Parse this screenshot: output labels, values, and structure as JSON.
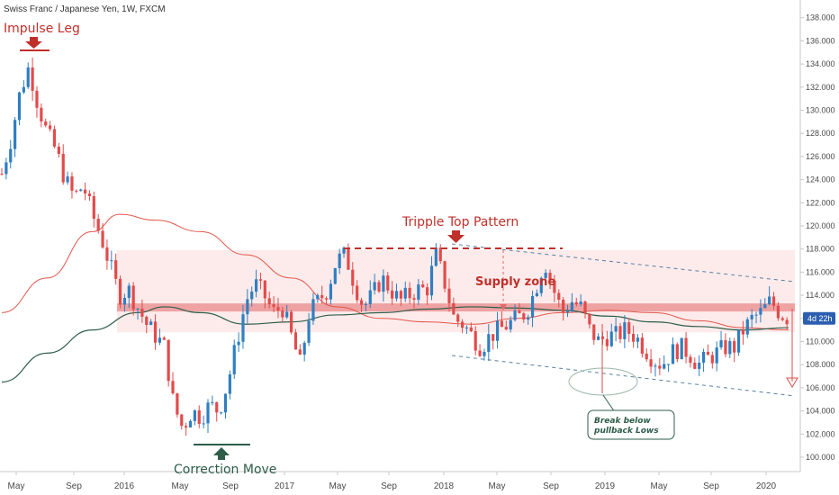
{
  "title": "Swiss Franc / Japanese Yen, 1W, FXCM",
  "price_badge": "4d 22h",
  "colors": {
    "up": "#2f7fc1",
    "down": "#e24b4b",
    "ma_red": "#e2574c",
    "ma_green": "#2e5d4a",
    "zone_fill": "#fde6e6",
    "zone_band": "#e88a8a",
    "badge_bg": "#2b5eb0"
  },
  "annotations": {
    "impulse": "Impulse Leg",
    "triple_top": "Tripple Top Pattern",
    "supply": "Supply zone",
    "correction": "Correction Move",
    "break_line1": "Break below",
    "break_line2": "pullback Lows"
  },
  "chart_data": {
    "type": "candlestick",
    "title": "Swiss Franc / Japanese Yen, 1W, FXCM",
    "ylim": [
      99.3,
      138.6
    ],
    "y_ticks": [
      "138.000",
      "136.000",
      "134.000",
      "132.000",
      "130.000",
      "128.000",
      "126.000",
      "124.000",
      "122.000",
      "120.000",
      "118.000",
      "116.000",
      "114.000",
      "112.000",
      "110.000",
      "108.000",
      "106.000",
      "104.000",
      "102.000",
      "100.000"
    ],
    "x_ticks": [
      "May",
      "Sep",
      "2016",
      "May",
      "Sep",
      "2017",
      "May",
      "Sep",
      "2018",
      "May",
      "Sep",
      "2019",
      "May",
      "Sep",
      "2020"
    ],
    "supply_zone": [
      110.8,
      117.9
    ],
    "support_band": [
      112.6,
      113.3
    ],
    "price_path": [
      {
        "t": 0,
        "p": 124.5
      },
      {
        "t": 2,
        "p": 127.5
      },
      {
        "t": 4,
        "p": 131.5
      },
      {
        "t": 6,
        "p": 133.8
      },
      {
        "t": 8,
        "p": 130.5
      },
      {
        "t": 10,
        "p": 128.0
      },
      {
        "t": 12,
        "p": 126.5
      },
      {
        "t": 14,
        "p": 124.0
      },
      {
        "t": 16,
        "p": 122.5
      },
      {
        "t": 18,
        "p": 123.5
      },
      {
        "t": 20,
        "p": 121.0
      },
      {
        "t": 22,
        "p": 119.0
      },
      {
        "t": 24,
        "p": 116.5
      },
      {
        "t": 26,
        "p": 114.0
      },
      {
        "t": 28,
        "p": 114.5
      },
      {
        "t": 30,
        "p": 113.0
      },
      {
        "t": 32,
        "p": 111.5
      },
      {
        "t": 34,
        "p": 110.5
      },
      {
        "t": 36,
        "p": 109.5
      },
      {
        "t": 38,
        "p": 104.5
      },
      {
        "t": 40,
        "p": 102.5
      },
      {
        "t": 42,
        "p": 104.0
      },
      {
        "t": 44,
        "p": 103.5
      },
      {
        "t": 46,
        "p": 104.5
      },
      {
        "t": 48,
        "p": 104.0
      },
      {
        "t": 50,
        "p": 106.5
      },
      {
        "t": 52,
        "p": 110.0
      },
      {
        "t": 54,
        "p": 113.5
      },
      {
        "t": 56,
        "p": 115.0
      },
      {
        "t": 58,
        "p": 114.0
      },
      {
        "t": 60,
        "p": 112.5
      },
      {
        "t": 62,
        "p": 113.0
      },
      {
        "t": 64,
        "p": 110.5
      },
      {
        "t": 66,
        "p": 108.0
      },
      {
        "t": 68,
        "p": 112.5
      },
      {
        "t": 70,
        "p": 113.5
      },
      {
        "t": 72,
        "p": 114.5
      },
      {
        "t": 74,
        "p": 117.0
      },
      {
        "t": 76,
        "p": 117.5
      },
      {
        "t": 78,
        "p": 115.0
      },
      {
        "t": 80,
        "p": 113.0
      },
      {
        "t": 82,
        "p": 114.0
      },
      {
        "t": 84,
        "p": 115.5
      },
      {
        "t": 86,
        "p": 114.5
      },
      {
        "t": 88,
        "p": 113.5
      },
      {
        "t": 90,
        "p": 114.0
      },
      {
        "t": 92,
        "p": 114.5
      },
      {
        "t": 94,
        "p": 114.5
      },
      {
        "t": 96,
        "p": 117.5
      },
      {
        "t": 98,
        "p": 115.0
      },
      {
        "t": 100,
        "p": 112.0
      },
      {
        "t": 102,
        "p": 111.5
      },
      {
        "t": 104,
        "p": 110.5
      },
      {
        "t": 106,
        "p": 109.5
      },
      {
        "t": 108,
        "p": 110.5
      },
      {
        "t": 110,
        "p": 111.0
      },
      {
        "t": 112,
        "p": 111.5
      },
      {
        "t": 114,
        "p": 112.0
      },
      {
        "t": 116,
        "p": 112.5
      },
      {
        "t": 118,
        "p": 114.5
      },
      {
        "t": 120,
        "p": 117.0
      },
      {
        "t": 122,
        "p": 114.5
      },
      {
        "t": 124,
        "p": 112.5
      },
      {
        "t": 126,
        "p": 113.5
      },
      {
        "t": 128,
        "p": 113.0
      },
      {
        "t": 130,
        "p": 111.0
      },
      {
        "t": 132,
        "p": 110.0
      },
      {
        "t": 134,
        "p": 110.5
      },
      {
        "t": 136,
        "p": 110.5
      },
      {
        "t": 138,
        "p": 111.0
      },
      {
        "t": 140,
        "p": 110.5
      },
      {
        "t": 142,
        "p": 109.5
      },
      {
        "t": 144,
        "p": 108.5
      },
      {
        "t": 146,
        "p": 108.0
      },
      {
        "t": 148,
        "p": 109.0
      },
      {
        "t": 150,
        "p": 109.5
      },
      {
        "t": 152,
        "p": 109.0
      },
      {
        "t": 154,
        "p": 108.0
      },
      {
        "t": 156,
        "p": 108.5
      },
      {
        "t": 158,
        "p": 109.0
      },
      {
        "t": 160,
        "p": 109.5
      },
      {
        "t": 162,
        "p": 109.5
      },
      {
        "t": 164,
        "p": 111.0
      },
      {
        "t": 166,
        "p": 112.0
      },
      {
        "t": 168,
        "p": 112.5
      },
      {
        "t": 170,
        "p": 113.5
      },
      {
        "t": 172,
        "p": 112.5
      },
      {
        "t": 174,
        "p": 112.0
      }
    ],
    "ma_red": [
      {
        "t": 0,
        "p": 112.5
      },
      {
        "t": 10,
        "p": 115.5
      },
      {
        "t": 20,
        "p": 119.5
      },
      {
        "t": 26,
        "p": 121.0
      },
      {
        "t": 34,
        "p": 120.5
      },
      {
        "t": 44,
        "p": 119.5
      },
      {
        "t": 54,
        "p": 117.5
      },
      {
        "t": 64,
        "p": 115.5
      },
      {
        "t": 74,
        "p": 113.0
      },
      {
        "t": 84,
        "p": 112.0
      },
      {
        "t": 94,
        "p": 111.7
      },
      {
        "t": 104,
        "p": 111.5
      },
      {
        "t": 114,
        "p": 112.0
      },
      {
        "t": 124,
        "p": 112.5
      },
      {
        "t": 134,
        "p": 112.7
      },
      {
        "t": 144,
        "p": 112.5
      },
      {
        "t": 154,
        "p": 111.8
      },
      {
        "t": 164,
        "p": 111.2
      },
      {
        "t": 174,
        "p": 111.0
      }
    ],
    "ma_green": [
      {
        "t": 0,
        "p": 106.5
      },
      {
        "t": 10,
        "p": 109.0
      },
      {
        "t": 20,
        "p": 111.0
      },
      {
        "t": 30,
        "p": 112.5
      },
      {
        "t": 36,
        "p": 113.0
      },
      {
        "t": 44,
        "p": 112.5
      },
      {
        "t": 54,
        "p": 111.5
      },
      {
        "t": 64,
        "p": 111.7
      },
      {
        "t": 74,
        "p": 112.3
      },
      {
        "t": 84,
        "p": 112.5
      },
      {
        "t": 94,
        "p": 112.8
      },
      {
        "t": 104,
        "p": 113.0
      },
      {
        "t": 114,
        "p": 112.9
      },
      {
        "t": 124,
        "p": 112.7
      },
      {
        "t": 134,
        "p": 112.2
      },
      {
        "t": 144,
        "p": 111.7
      },
      {
        "t": 154,
        "p": 111.3
      },
      {
        "t": 164,
        "p": 111.0
      },
      {
        "t": 174,
        "p": 111.2
      }
    ],
    "last_price": 112.0
  }
}
